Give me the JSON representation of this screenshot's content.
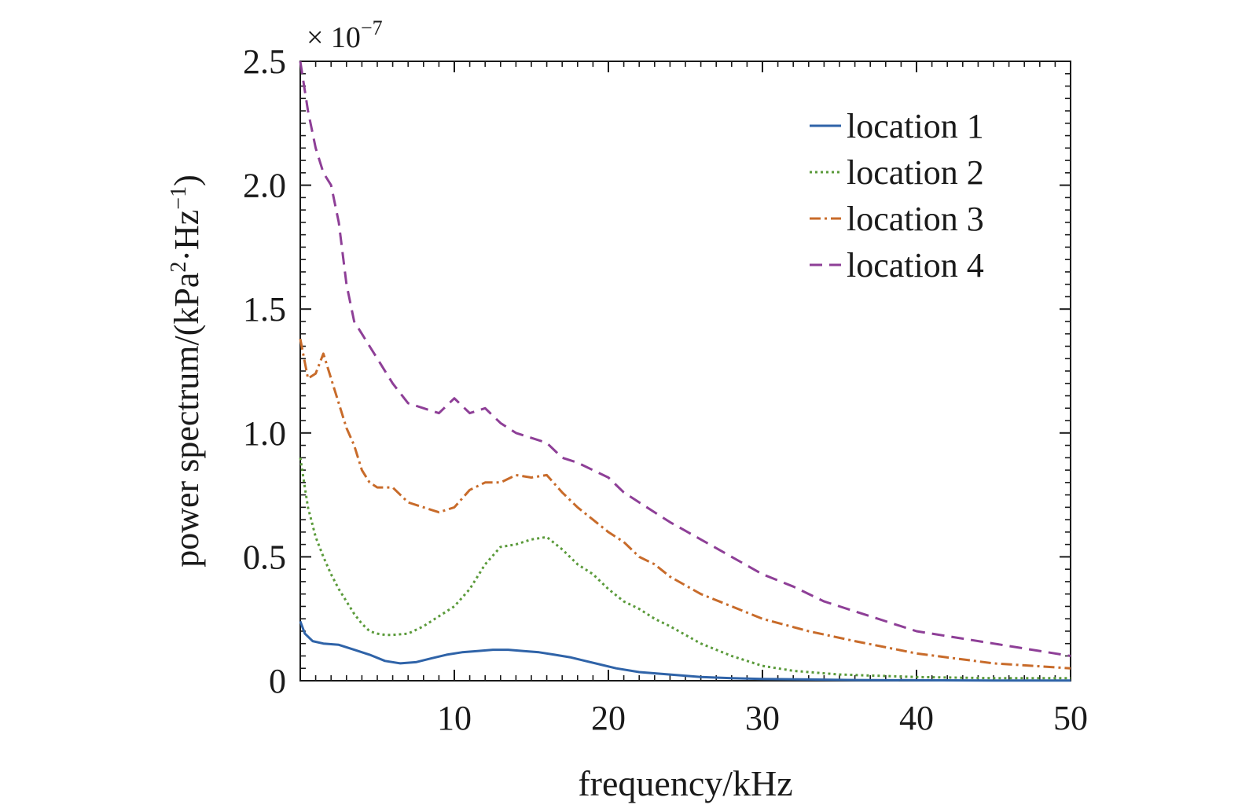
{
  "chart_data": {
    "type": "line",
    "title": "",
    "xlabel": "frequency/kHz",
    "ylabel_prefix": "power spectrum/(kPa",
    "ylabel_sup1": "2",
    "ylabel_mid": "·Hz",
    "ylabel_sup2": "−1",
    "ylabel_suffix": ")",
    "y_multiplier_base": "× 10",
    "y_multiplier_exp": "−7",
    "xlim": [
      0,
      50
    ],
    "ylim": [
      0,
      2.5
    ],
    "xticks": [
      10,
      20,
      30,
      40,
      50
    ],
    "xtick_labels": [
      "10",
      "20",
      "30",
      "40",
      "50"
    ],
    "yticks": [
      0,
      0.5,
      1.0,
      1.5,
      2.0,
      2.5
    ],
    "ytick_labels": [
      "0",
      "0.5",
      "1.0",
      "1.5",
      "2.0",
      "2.5"
    ],
    "legend_position": "top-right",
    "grid": false,
    "series": [
      {
        "name": "location 1",
        "color": "#2f63a8",
        "dash": "solid",
        "x": [
          0,
          0.3,
          0.8,
          1.5,
          2.5,
          3.5,
          4.5,
          5.5,
          6.5,
          7.5,
          8.5,
          9.5,
          10.5,
          11.5,
          12.5,
          13.5,
          14.5,
          15.5,
          16.5,
          17.5,
          18.5,
          19.5,
          20.5,
          22,
          24,
          26,
          28,
          30,
          33,
          36,
          40,
          45,
          50
        ],
        "y": [
          0.24,
          0.19,
          0.16,
          0.15,
          0.145,
          0.125,
          0.105,
          0.08,
          0.07,
          0.075,
          0.09,
          0.105,
          0.115,
          0.12,
          0.125,
          0.125,
          0.12,
          0.115,
          0.105,
          0.095,
          0.08,
          0.065,
          0.05,
          0.035,
          0.025,
          0.015,
          0.01,
          0.007,
          0.005,
          0.003,
          0.002,
          0.001,
          0.001
        ]
      },
      {
        "name": "location 2",
        "color": "#5a9a3a",
        "dash": "dotted",
        "x": [
          0,
          0.5,
          1,
          1.5,
          2,
          2.5,
          3,
          3.5,
          4,
          4.5,
          5,
          5.5,
          6,
          7,
          8,
          9,
          10,
          11,
          12,
          13,
          14,
          15,
          16,
          17,
          18,
          19,
          20,
          21,
          22,
          23,
          24,
          26,
          28,
          30,
          32,
          35,
          40,
          45,
          50
        ],
        "y": [
          0.9,
          0.7,
          0.58,
          0.5,
          0.43,
          0.37,
          0.32,
          0.27,
          0.23,
          0.2,
          0.19,
          0.185,
          0.185,
          0.19,
          0.22,
          0.26,
          0.3,
          0.37,
          0.47,
          0.54,
          0.55,
          0.57,
          0.58,
          0.53,
          0.47,
          0.43,
          0.37,
          0.32,
          0.29,
          0.25,
          0.22,
          0.15,
          0.1,
          0.06,
          0.04,
          0.025,
          0.015,
          0.01,
          0.01
        ]
      },
      {
        "name": "location 3",
        "color": "#c86b2a",
        "dash": "dashdot",
        "x": [
          0,
          0.5,
          1,
          1.5,
          2,
          2.5,
          3,
          3.5,
          4,
          4.5,
          5,
          6,
          7,
          8,
          9,
          10,
          11,
          12,
          13,
          14,
          15,
          16,
          17,
          18,
          19,
          20,
          21,
          22,
          23,
          24,
          26,
          28,
          30,
          33,
          36,
          40,
          45,
          50
        ],
        "y": [
          1.38,
          1.22,
          1.24,
          1.32,
          1.22,
          1.12,
          1.02,
          0.95,
          0.85,
          0.8,
          0.78,
          0.78,
          0.72,
          0.7,
          0.68,
          0.7,
          0.77,
          0.8,
          0.8,
          0.83,
          0.82,
          0.83,
          0.76,
          0.7,
          0.65,
          0.6,
          0.56,
          0.5,
          0.47,
          0.42,
          0.35,
          0.3,
          0.25,
          0.2,
          0.16,
          0.11,
          0.07,
          0.05
        ]
      },
      {
        "name": "location 4",
        "color": "#8e3f97",
        "dash": "dashed",
        "x": [
          0,
          0.5,
          1,
          1.5,
          2,
          2.5,
          3,
          3.5,
          4,
          4.5,
          5,
          6,
          7,
          8,
          9,
          10,
          11,
          12,
          13,
          14,
          15,
          16,
          17,
          18,
          19,
          20,
          21,
          22,
          23,
          24,
          26,
          28,
          30,
          32,
          34,
          36,
          40,
          45,
          50
        ],
        "y": [
          2.5,
          2.3,
          2.15,
          2.05,
          2.0,
          1.85,
          1.6,
          1.45,
          1.4,
          1.35,
          1.3,
          1.2,
          1.12,
          1.1,
          1.08,
          1.14,
          1.08,
          1.1,
          1.04,
          1.0,
          0.98,
          0.96,
          0.9,
          0.88,
          0.85,
          0.82,
          0.76,
          0.72,
          0.68,
          0.64,
          0.57,
          0.5,
          0.43,
          0.38,
          0.32,
          0.28,
          0.2,
          0.15,
          0.1
        ]
      }
    ]
  }
}
